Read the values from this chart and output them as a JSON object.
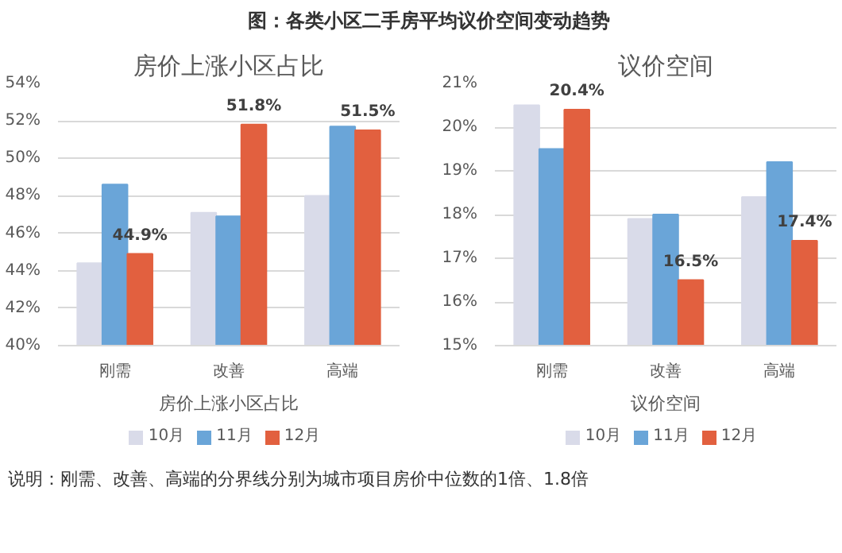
{
  "chart_data": [
    {
      "type": "bar",
      "title": "房价上涨小区占比",
      "xlabel": "房价上涨小区占比",
      "categories": [
        "刚需",
        "改善",
        "高端"
      ],
      "series": [
        {
          "name": "10月",
          "color": "#d9dbe9",
          "values": [
            44.4,
            47.1,
            48.0
          ]
        },
        {
          "name": "11月",
          "color": "#6aa5d8",
          "values": [
            48.6,
            46.9,
            51.7
          ]
        },
        {
          "name": "12月",
          "color": "#e2603f",
          "values": [
            44.9,
            51.8,
            51.5
          ],
          "value_labels": [
            "44.9%",
            "51.8%",
            "51.5%"
          ]
        }
      ],
      "ylim": [
        40,
        54
      ],
      "yticks": [
        {
          "value": 40,
          "label": "40%"
        },
        {
          "value": 42,
          "label": "42%"
        },
        {
          "value": 44,
          "label": "44%"
        },
        {
          "value": 46,
          "label": "46%"
        },
        {
          "value": 48,
          "label": "48%"
        },
        {
          "value": 50,
          "label": "50%"
        },
        {
          "value": 52,
          "label": "52%"
        },
        {
          "value": 54,
          "label": "54%"
        }
      ],
      "grid": "y",
      "legend": "bottom",
      "annotations": [
        "图：各类小区二手房平均议价空间变动趋势",
        "说明：刚需、改善、高端的分界线分别为城市项目房价中位数的1倍、1.8倍"
      ]
    },
    {
      "type": "bar",
      "title": "议价空间",
      "xlabel": "议价空间",
      "categories": [
        "刚需",
        "改善",
        "高端"
      ],
      "series": [
        {
          "name": "10月",
          "color": "#d9dbe9",
          "values": [
            20.5,
            17.9,
            18.4
          ]
        },
        {
          "name": "11月",
          "color": "#6aa5d8",
          "values": [
            19.5,
            18.0,
            19.2
          ]
        },
        {
          "name": "12月",
          "color": "#e2603f",
          "values": [
            20.4,
            16.5,
            17.4
          ],
          "value_labels": [
            "20.4%",
            "16.5%",
            "17.4%"
          ]
        }
      ],
      "ylim": [
        15,
        21
      ],
      "yticks": [
        {
          "value": 15,
          "label": "15%"
        },
        {
          "value": 16,
          "label": "16%"
        },
        {
          "value": 17,
          "label": "17%"
        },
        {
          "value": 18,
          "label": "18%"
        },
        {
          "value": 19,
          "label": "19%"
        },
        {
          "value": 20,
          "label": "20%"
        },
        {
          "value": 21,
          "label": "21%"
        }
      ],
      "grid": "y",
      "legend": "bottom"
    }
  ]
}
